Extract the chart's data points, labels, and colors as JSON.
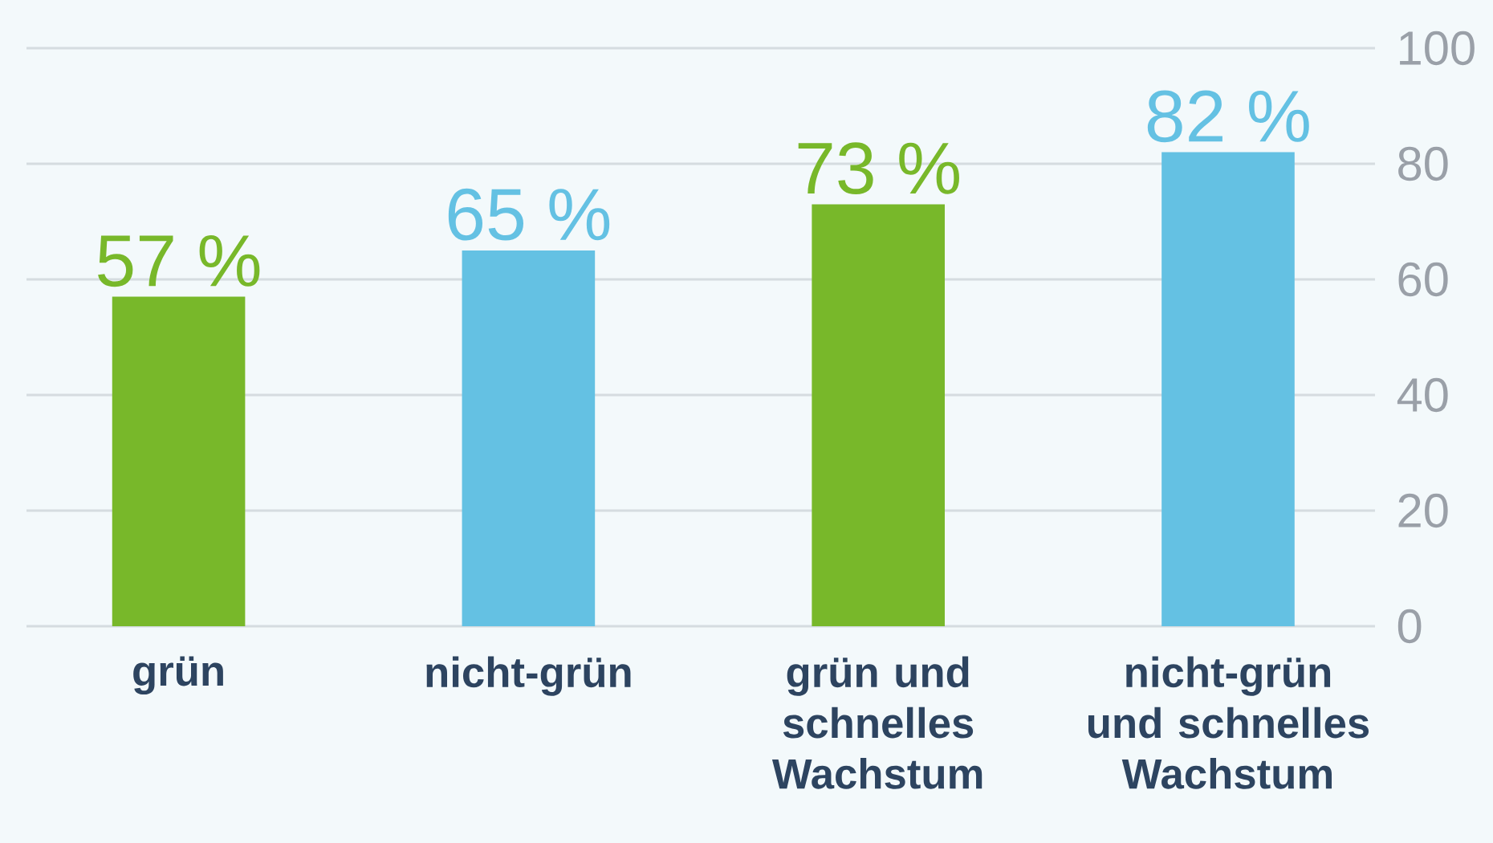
{
  "chart_data": {
    "type": "bar",
    "categories": [
      "grün",
      "nicht-grün",
      "grün und schnelles Wachstum",
      "nicht-grün und schnelles Wachstum"
    ],
    "values": [
      57,
      65,
      73,
      82
    ],
    "colors": [
      "#78b82a",
      "#64c1e3",
      "#78b82a",
      "#64c1e3"
    ],
    "value_labels": [
      "57 %",
      "65 %",
      "73 %",
      "82 %"
    ],
    "ylim": [
      0,
      100
    ],
    "yticks": [
      0,
      20,
      40,
      60,
      80,
      100
    ],
    "grid": "y"
  }
}
